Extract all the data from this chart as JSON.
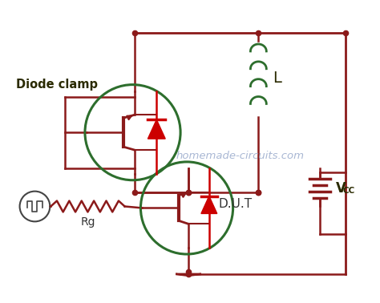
{
  "background_color": "#ffffff",
  "wire_color": "#8B1a1a",
  "outline_color": "#2d6e2d",
  "transistor_color": "#8B1a1a",
  "diode_color": "#cc0000",
  "text_color": "#2a2a00",
  "watermark_color": "#9aabcc",
  "watermark_text": "homemade-circuits.com",
  "label_diode_clamp": "Diode clamp",
  "label_L": "L",
  "label_DUT": "D.U.T",
  "label_Rg": "Rg"
}
